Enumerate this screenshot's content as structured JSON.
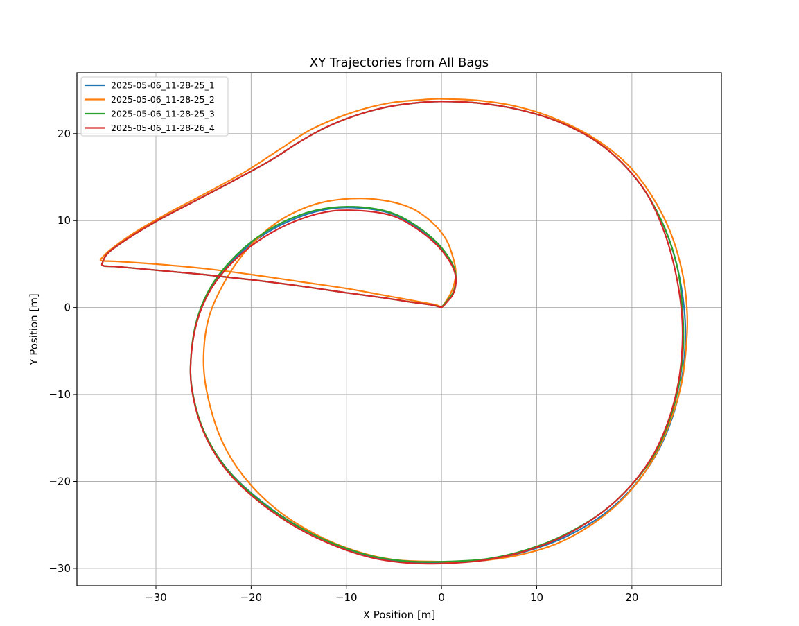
{
  "chart_data": {
    "type": "line",
    "title": "XY Trajectories from All Bags",
    "xlabel": "X Position [m]",
    "ylabel": "Y Position [m]",
    "xlim": [
      -38.3,
      29.4
    ],
    "ylim": [
      -32.0,
      27.0
    ],
    "xticks": [
      -30,
      -20,
      -10,
      0,
      10,
      20
    ],
    "yticks": [
      -30,
      -20,
      -10,
      0,
      10,
      20
    ],
    "xtick_labels": [
      "−30",
      "−20",
      "−10",
      "0",
      "10",
      "20"
    ],
    "ytick_labels": [
      "−30",
      "−20",
      "−10",
      "0",
      "10",
      "20"
    ],
    "grid": true,
    "legend_position": "upper-left",
    "series": [
      {
        "name": "2025-05-06_11-28-25_1",
        "color": "#1f77b4",
        "x": [
          0,
          -0.3,
          -1,
          -3,
          -6,
          -10,
          -15,
          -20,
          -25,
          -30,
          -34,
          -35.5,
          -35.6,
          -35,
          -33,
          -30,
          -26,
          -22,
          -18,
          -15,
          -12,
          -9,
          -6,
          -3,
          0,
          4,
          8,
          12,
          16,
          19,
          21.5,
          23.5,
          24.8,
          25.5,
          25.6,
          25.2,
          24.2,
          22.5,
          20,
          17,
          13,
          9,
          5,
          1,
          -3,
          -7,
          -11,
          -15,
          -19,
          -22.5,
          -25,
          -26.2,
          -26.3,
          -25.6,
          -24,
          -21.5,
          -18.5,
          -15,
          -11.5,
          -8,
          -5,
          -2.5,
          -0.5,
          0.8,
          1.4,
          1.5,
          1.2,
          0.7,
          0.3,
          0
        ],
        "y": [
          0,
          0.1,
          0.3,
          0.6,
          1.1,
          1.7,
          2.5,
          3.2,
          3.8,
          4.3,
          4.7,
          4.8,
          5.2,
          6.3,
          7.9,
          9.9,
          12.2,
          14.5,
          16.9,
          19.0,
          20.8,
          22.1,
          23.0,
          23.5,
          23.7,
          23.5,
          22.8,
          21.5,
          19.3,
          16.6,
          13.2,
          9.0,
          4.5,
          -0.2,
          -4.2,
          -8.5,
          -12.8,
          -17.0,
          -20.8,
          -23.8,
          -26.4,
          -28.0,
          -29.0,
          -29.3,
          -29.3,
          -28.7,
          -27.3,
          -25.2,
          -22.2,
          -18.6,
          -14.2,
          -9.5,
          -5.5,
          -1.2,
          2.6,
          5.9,
          8.5,
          10.4,
          11.4,
          11.4,
          10.7,
          9.2,
          7.4,
          5.6,
          4.2,
          2.8,
          1.6,
          0.9,
          0.4,
          0
        ]
      },
      {
        "name": "2025-05-06_11-28-25_2",
        "color": "#ff7f0e",
        "x": [
          0,
          -0.3,
          -1,
          -3,
          -6,
          -10,
          -15,
          -20,
          -25,
          -30,
          -34,
          -35.7,
          -35.6,
          -34.5,
          -32,
          -28.5,
          -24.5,
          -20.5,
          -17,
          -14,
          -11,
          -8,
          -5,
          -2,
          0,
          4,
          8,
          12,
          16,
          19.5,
          22,
          24,
          25.3,
          25.8,
          25.7,
          25.2,
          24,
          22.2,
          19.5,
          16,
          12,
          7.5,
          3,
          -1,
          -5,
          -9,
          -13,
          -17,
          -20.5,
          -23,
          -24.5,
          -25,
          -24.4,
          -22.5,
          -20,
          -17,
          -13.5,
          -10,
          -6.5,
          -3.3,
          -1,
          0.5,
          1.2,
          1.5,
          1.3,
          0.9,
          0.5,
          0.2,
          0
        ],
        "y": [
          0,
          0.2,
          0.4,
          0.8,
          1.4,
          2.2,
          3.0,
          3.8,
          4.5,
          5.0,
          5.3,
          5.4,
          5.8,
          6.9,
          8.8,
          11.0,
          13.3,
          15.7,
          18.2,
          20.3,
          21.8,
          22.9,
          23.6,
          23.9,
          24.0,
          23.8,
          23.1,
          21.7,
          19.5,
          16.5,
          13.0,
          8.8,
          4.0,
          -0.5,
          -4.5,
          -8.8,
          -13.2,
          -17.5,
          -21.5,
          -24.8,
          -27.2,
          -28.6,
          -29.2,
          -29.2,
          -29.0,
          -28.0,
          -26.2,
          -23.5,
          -19.8,
          -15.5,
          -10.5,
          -6.0,
          -1.0,
          3.5,
          7.2,
          10.0,
          11.8,
          12.5,
          12.4,
          11.5,
          9.8,
          7.8,
          5.8,
          4.1,
          2.6,
          1.5,
          0.8,
          0.3,
          0
        ]
      },
      {
        "name": "2025-05-06_11-28-25_3",
        "color": "#2ca02c",
        "x": [
          0,
          -0.3,
          -1,
          -3,
          -6,
          -10,
          -15,
          -20,
          -25,
          -30,
          -34,
          -35.5,
          -35.6,
          -35,
          -33,
          -30,
          -26,
          -22,
          -18,
          -15,
          -12,
          -9,
          -6,
          -3,
          0,
          4,
          8,
          12,
          16,
          19,
          21.5,
          23.5,
          24.8,
          25.3,
          25.4,
          25.0,
          24.0,
          22.3,
          19.8,
          16.8,
          12.8,
          8.8,
          4.8,
          0.8,
          -3.2,
          -7.2,
          -11.2,
          -15.2,
          -19.2,
          -22.6,
          -25,
          -26.2,
          -26.3,
          -25.6,
          -24,
          -21.5,
          -18.5,
          -15,
          -11.5,
          -8,
          -5,
          -2.5,
          -0.5,
          0.8,
          1.4,
          1.5,
          1.2,
          0.7,
          0.3,
          0
        ],
        "y": [
          0,
          0.1,
          0.3,
          0.6,
          1.1,
          1.7,
          2.5,
          3.2,
          3.8,
          4.3,
          4.7,
          4.8,
          5.2,
          6.3,
          7.9,
          9.9,
          12.2,
          14.5,
          16.9,
          19.0,
          20.8,
          22.1,
          23.0,
          23.5,
          23.7,
          23.5,
          22.8,
          21.5,
          19.3,
          16.6,
          13.2,
          9.0,
          4.5,
          -0.2,
          -4.2,
          -8.5,
          -12.8,
          -17.0,
          -20.6,
          -23.6,
          -26.2,
          -27.9,
          -28.9,
          -29.2,
          -29.2,
          -28.6,
          -27.2,
          -25.1,
          -22.1,
          -18.5,
          -14.1,
          -9.4,
          -5.4,
          -1.0,
          2.8,
          6.1,
          8.7,
          10.6,
          11.5,
          11.5,
          10.8,
          9.3,
          7.5,
          5.7,
          4.3,
          2.9,
          1.7,
          0.9,
          0.4,
          0
        ]
      },
      {
        "name": "2025-05-06_11-28-26_4",
        "color": "#d62728",
        "x": [
          0,
          -0.3,
          -1,
          -3,
          -6,
          -10,
          -15,
          -20,
          -25,
          -30,
          -34,
          -35.5,
          -35.6,
          -35,
          -33,
          -30,
          -26,
          -22,
          -18,
          -15,
          -12,
          -9,
          -6,
          -3,
          0,
          4,
          8,
          12,
          16,
          19,
          21.5,
          23.3,
          24.5,
          25.2,
          25.3,
          24.9,
          23.9,
          22.2,
          19.7,
          16.7,
          12.8,
          8.8,
          4.8,
          0.8,
          -3.2,
          -7.2,
          -11.2,
          -15.2,
          -19.2,
          -22.6,
          -25,
          -26.2,
          -26.3,
          -25.6,
          -24,
          -21.5,
          -18.5,
          -15,
          -11.5,
          -8,
          -5,
          -2.5,
          -0.5,
          0.8,
          1.4,
          1.5,
          1.2,
          0.7,
          0.3,
          0
        ],
        "y": [
          0,
          0.1,
          0.3,
          0.6,
          1.1,
          1.7,
          2.5,
          3.2,
          3.8,
          4.3,
          4.7,
          4.8,
          5.2,
          6.3,
          7.9,
          9.9,
          12.2,
          14.5,
          16.9,
          19.0,
          20.8,
          22.1,
          23.0,
          23.5,
          23.7,
          23.5,
          22.8,
          21.5,
          19.3,
          16.6,
          13.2,
          9.0,
          4.5,
          -0.2,
          -4.2,
          -8.5,
          -12.8,
          -17.0,
          -20.7,
          -23.7,
          -26.3,
          -28.0,
          -29.0,
          -29.4,
          -29.4,
          -28.8,
          -27.4,
          -25.3,
          -22.3,
          -18.7,
          -14.3,
          -9.6,
          -5.6,
          -1.3,
          2.5,
          5.7,
          8.2,
          10.1,
          11.1,
          11.1,
          10.5,
          9.0,
          7.2,
          5.4,
          4.0,
          2.7,
          1.5,
          0.8,
          0.3,
          0
        ]
      }
    ]
  }
}
